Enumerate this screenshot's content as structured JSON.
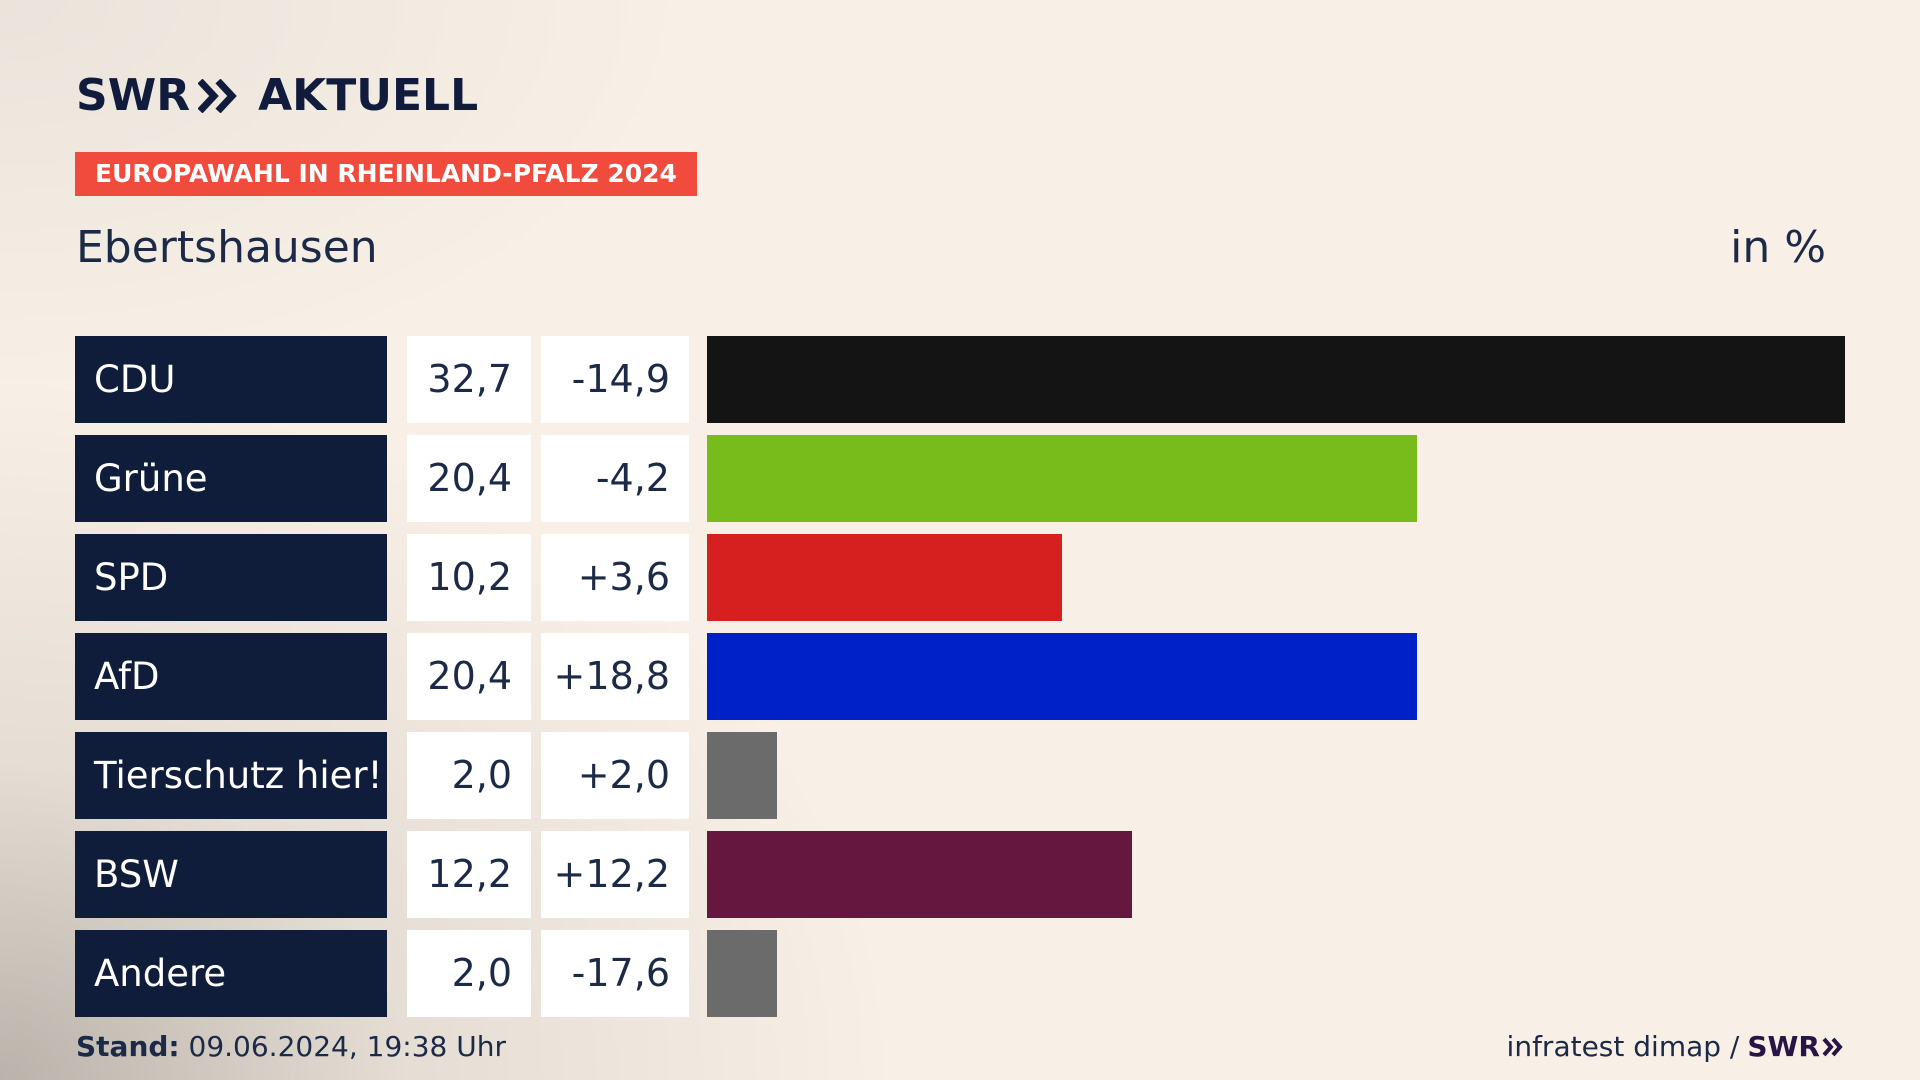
{
  "header": {
    "logo_left": "SWR",
    "logo_right": "AKTUELL",
    "tag": "EUROPAWAHL IN RHEINLAND-PFALZ 2024",
    "place": "Ebertshausen",
    "unit": "in %"
  },
  "chart_data": {
    "type": "bar",
    "orientation": "horizontal",
    "categories": [
      "CDU",
      "Grüne",
      "SPD",
      "AfD",
      "Tierschutz hier!",
      "BSW",
      "Andere"
    ],
    "values": [
      32.7,
      20.4,
      10.2,
      20.4,
      2.0,
      12.2,
      2.0
    ],
    "value_labels": [
      "32,7",
      "20,4",
      "10,2",
      "20,4",
      "2,0",
      "12,2",
      "2,0"
    ],
    "diff_labels": [
      "-14,9",
      "-4,2",
      "+3,6",
      "+18,8",
      "+2,0",
      "+12,2",
      "-17,6"
    ],
    "colors": [
      "#141414",
      "#78bc1b",
      "#d61f1f",
      "#0021c8",
      "#6b6b6b",
      "#66173f",
      "#6b6b6b"
    ],
    "xlim": [
      0,
      32.7
    ]
  },
  "footer": {
    "stand_label": "Stand:",
    "stand_value": " 09.06.2024, 19:38 Uhr",
    "source": "infratest dimap /",
    "source_logo": "SWR"
  }
}
